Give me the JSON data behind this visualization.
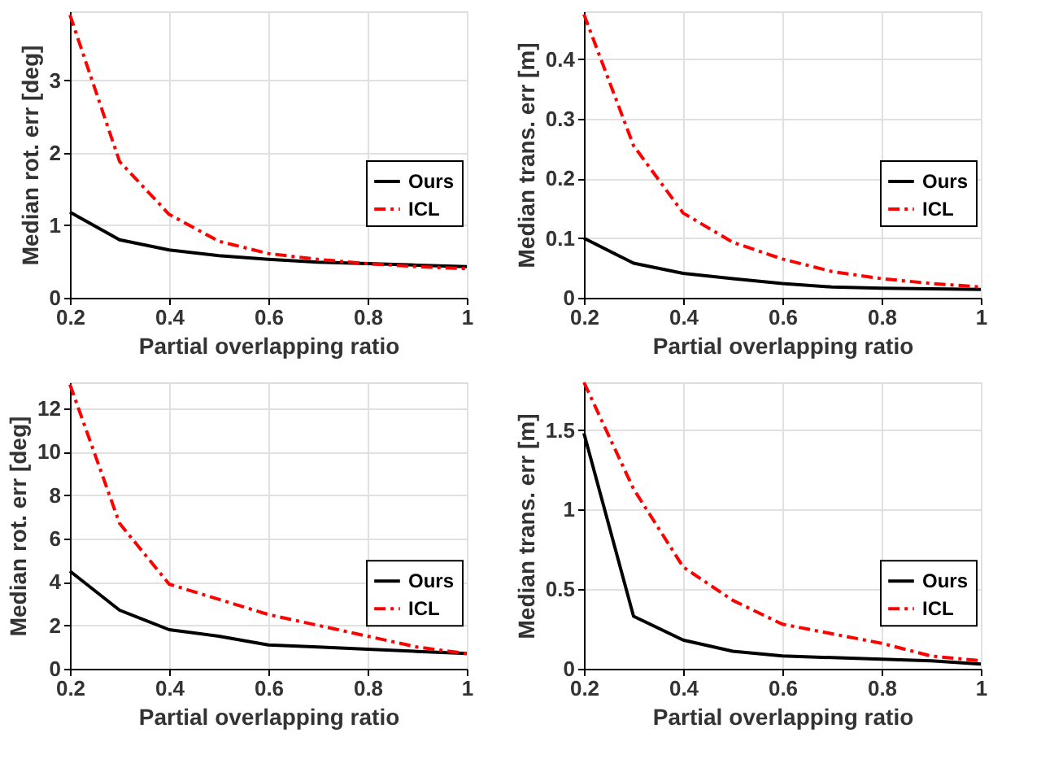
{
  "chart_data": [
    {
      "type": "line",
      "xlabel": "Partial overlapping ratio",
      "ylabel": "Median rot. err [deg]",
      "x": [
        0.2,
        0.3,
        0.4,
        0.5,
        0.6,
        0.7,
        0.8,
        0.9,
        1.0
      ],
      "xlim": [
        0.2,
        1
      ],
      "xticks": [
        0.2,
        0.4,
        0.6,
        0.8,
        1
      ],
      "ylim": [
        0,
        3.95
      ],
      "yticks": [
        0,
        1,
        2,
        3
      ],
      "grid": true,
      "legend": "right",
      "series": [
        {
          "name": "Ours",
          "color": "#000000",
          "line_style": "solid",
          "values": [
            1.18,
            0.8,
            0.66,
            0.58,
            0.53,
            0.49,
            0.47,
            0.45,
            0.43
          ]
        },
        {
          "name": "ICL",
          "color": "#ff0000",
          "line_style": "dashed",
          "values": [
            3.9,
            1.88,
            1.15,
            0.78,
            0.61,
            0.53,
            0.47,
            0.43,
            0.4
          ]
        }
      ]
    },
    {
      "type": "line",
      "xlabel": "Partial overlapping ratio",
      "ylabel": "Median trans. err [m]",
      "x": [
        0.2,
        0.3,
        0.4,
        0.5,
        0.6,
        0.7,
        0.8,
        0.9,
        1.0
      ],
      "xlim": [
        0.2,
        1
      ],
      "xticks": [
        0.2,
        0.4,
        0.6,
        0.8,
        1
      ],
      "ylim": [
        0,
        0.48
      ],
      "yticks": [
        0,
        0.1,
        0.2,
        0.3,
        0.4
      ],
      "grid": true,
      "legend": "right",
      "series": [
        {
          "name": "Ours",
          "color": "#000000",
          "line_style": "solid",
          "values": [
            0.1,
            0.058,
            0.041,
            0.032,
            0.024,
            0.018,
            0.016,
            0.015,
            0.014
          ]
        },
        {
          "name": "ICL",
          "color": "#ff0000",
          "line_style": "dashed",
          "values": [
            0.475,
            0.255,
            0.142,
            0.093,
            0.065,
            0.044,
            0.032,
            0.024,
            0.018
          ]
        }
      ]
    },
    {
      "type": "line",
      "xlabel": "Partial overlapping ratio",
      "ylabel": "Median rot. err [deg]",
      "x": [
        0.2,
        0.3,
        0.4,
        0.5,
        0.6,
        0.7,
        0.8,
        0.9,
        1.0
      ],
      "xlim": [
        0.2,
        1
      ],
      "xticks": [
        0.2,
        0.4,
        0.6,
        0.8,
        1
      ],
      "ylim": [
        0,
        13.2
      ],
      "yticks": [
        0,
        2,
        4,
        6,
        8,
        10,
        12
      ],
      "grid": true,
      "legend": "bottom right",
      "series": [
        {
          "name": "Ours",
          "color": "#000000",
          "line_style": "solid",
          "values": [
            4.5,
            2.7,
            1.8,
            1.5,
            1.1,
            1.0,
            0.9,
            0.8,
            0.7
          ]
        },
        {
          "name": "ICL",
          "color": "#ff0000",
          "line_style": "dashed",
          "values": [
            13.1,
            6.7,
            3.9,
            3.2,
            2.5,
            2.0,
            1.5,
            1.0,
            0.7
          ]
        }
      ]
    },
    {
      "type": "line",
      "xlabel": "Partial overlapping ratio",
      "ylabel": "Median trans. err [m]",
      "x": [
        0.2,
        0.3,
        0.4,
        0.5,
        0.6,
        0.7,
        0.8,
        0.9,
        1.0
      ],
      "xlim": [
        0.2,
        1
      ],
      "xticks": [
        0.2,
        0.4,
        0.6,
        0.8,
        1
      ],
      "ylim": [
        0,
        1.8
      ],
      "yticks": [
        0,
        0.5,
        1,
        1.5
      ],
      "grid": true,
      "legend": "bottom right",
      "series": [
        {
          "name": "Ours",
          "color": "#000000",
          "line_style": "solid",
          "values": [
            1.48,
            0.33,
            0.18,
            0.11,
            0.08,
            0.07,
            0.06,
            0.05,
            0.03
          ]
        },
        {
          "name": "ICL",
          "color": "#ff0000",
          "line_style": "dashed",
          "values": [
            1.8,
            1.13,
            0.64,
            0.43,
            0.28,
            0.22,
            0.16,
            0.08,
            0.05
          ]
        }
      ]
    }
  ]
}
